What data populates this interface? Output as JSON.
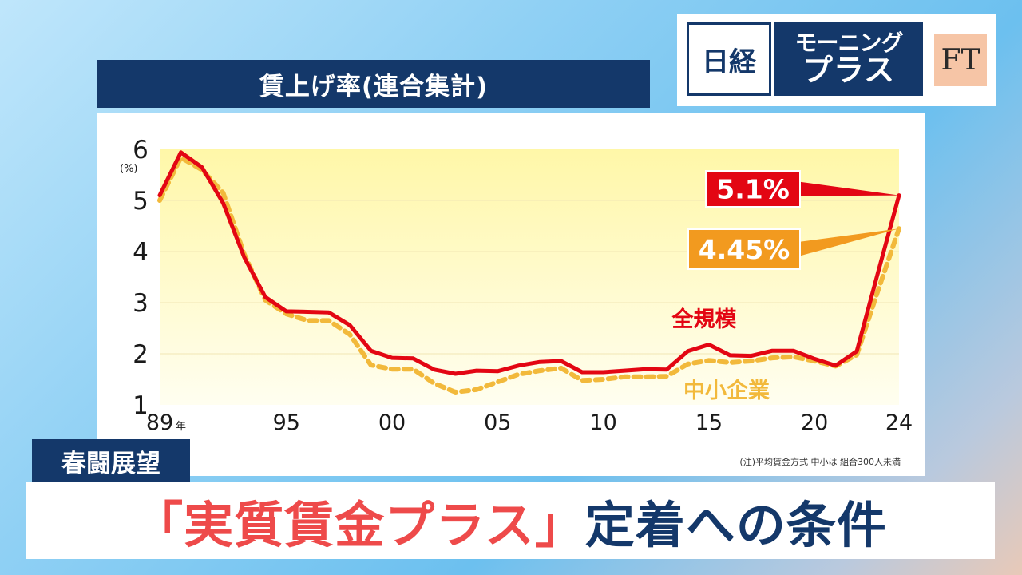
{
  "header": {
    "title": "賃上げ率(連合集計)"
  },
  "logo": {
    "nikkei": "日経",
    "show_line1": "モーニング",
    "show_line2": "プラス",
    "ft": "FT"
  },
  "segment": {
    "tag": "春闘展望"
  },
  "headline": {
    "highlight": "「実質賃金プラス」",
    "rest": "定着への条件"
  },
  "colors": {
    "all_scale": "#e30613",
    "sme": "#f2b93b",
    "callout_sme": "#f29a1f",
    "plot_bg_top": "#fff7a8",
    "plot_bg_bottom": "#fffef0",
    "navy": "#14386a"
  },
  "chart_data": {
    "type": "line",
    "title": "賃上げ率(連合集計)",
    "xlabel": "",
    "ylabel": "(%)",
    "ylim": [
      1,
      6
    ],
    "xlim": [
      1989,
      2024
    ],
    "yticks": [
      "1",
      "2",
      "3",
      "4",
      "5",
      "6"
    ],
    "xtick_labels": [
      {
        "x": 1989,
        "label": "89"
      },
      {
        "x": 1995,
        "label": "95"
      },
      {
        "x": 2000,
        "label": "00"
      },
      {
        "x": 2005,
        "label": "05"
      },
      {
        "x": 2010,
        "label": "10"
      },
      {
        "x": 2015,
        "label": "15"
      },
      {
        "x": 2020,
        "label": "20"
      },
      {
        "x": 2024,
        "label": "24"
      }
    ],
    "year_suffix": "年",
    "x": [
      1989,
      1990,
      1991,
      1992,
      1993,
      1994,
      1995,
      1996,
      1997,
      1998,
      1999,
      2000,
      2001,
      2002,
      2003,
      2004,
      2005,
      2006,
      2007,
      2008,
      2009,
      2010,
      2011,
      2012,
      2013,
      2014,
      2015,
      2016,
      2017,
      2018,
      2019,
      2020,
      2021,
      2022,
      2023,
      2024
    ],
    "series": [
      {
        "name": "全規模",
        "style": "solid",
        "values": [
          5.1,
          5.94,
          5.65,
          4.95,
          3.89,
          3.11,
          2.83,
          2.82,
          2.81,
          2.56,
          2.06,
          1.92,
          1.91,
          1.69,
          1.61,
          1.67,
          1.66,
          1.77,
          1.84,
          1.86,
          1.64,
          1.64,
          1.67,
          1.7,
          1.69,
          2.05,
          2.18,
          1.97,
          1.96,
          2.06,
          2.06,
          1.9,
          1.77,
          2.05,
          3.58,
          5.1
        ]
      },
      {
        "name": "中小企業",
        "style": "dashed",
        "values": [
          5.0,
          5.84,
          5.6,
          5.15,
          3.95,
          3.05,
          2.78,
          2.65,
          2.65,
          2.38,
          1.78,
          1.7,
          1.7,
          1.42,
          1.25,
          1.3,
          1.45,
          1.6,
          1.67,
          1.72,
          1.48,
          1.5,
          1.55,
          1.55,
          1.56,
          1.8,
          1.87,
          1.83,
          1.86,
          1.92,
          1.94,
          1.86,
          1.76,
          1.98,
          3.23,
          4.45
        ]
      }
    ],
    "callouts": [
      {
        "series": "全規模",
        "text": "5.1%"
      },
      {
        "series": "中小企業",
        "text": "4.45%"
      }
    ],
    "note": "(注)平均賃金方式 中小は 組合300人未満"
  }
}
